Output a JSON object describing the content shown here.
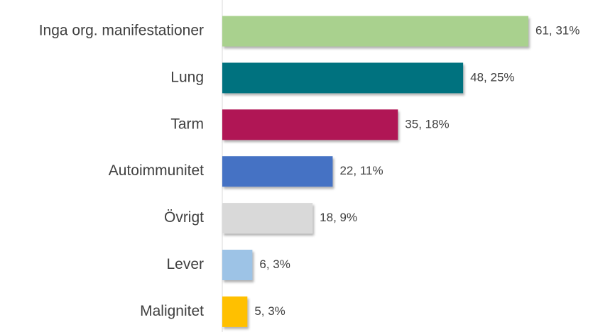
{
  "chart_data": {
    "type": "bar",
    "orientation": "horizontal",
    "categories": [
      "Inga org. manifestationer",
      "Lung",
      "Tarm",
      "Autoimmunitet",
      "Övrigt",
      "Lever",
      "Malignitet"
    ],
    "values": [
      61,
      48,
      35,
      22,
      18,
      6,
      5
    ],
    "value_labels": [
      "61, 31%",
      "48, 25%",
      "35, 18%",
      "22, 11%",
      "18, 9%",
      "6, 3%",
      "5, 3%"
    ],
    "colors": [
      "#a9d18e",
      "#00727f",
      "#b01254",
      "#4472c4",
      "#d9d9d9",
      "#9dc3e6",
      "#ffc000"
    ]
  }
}
